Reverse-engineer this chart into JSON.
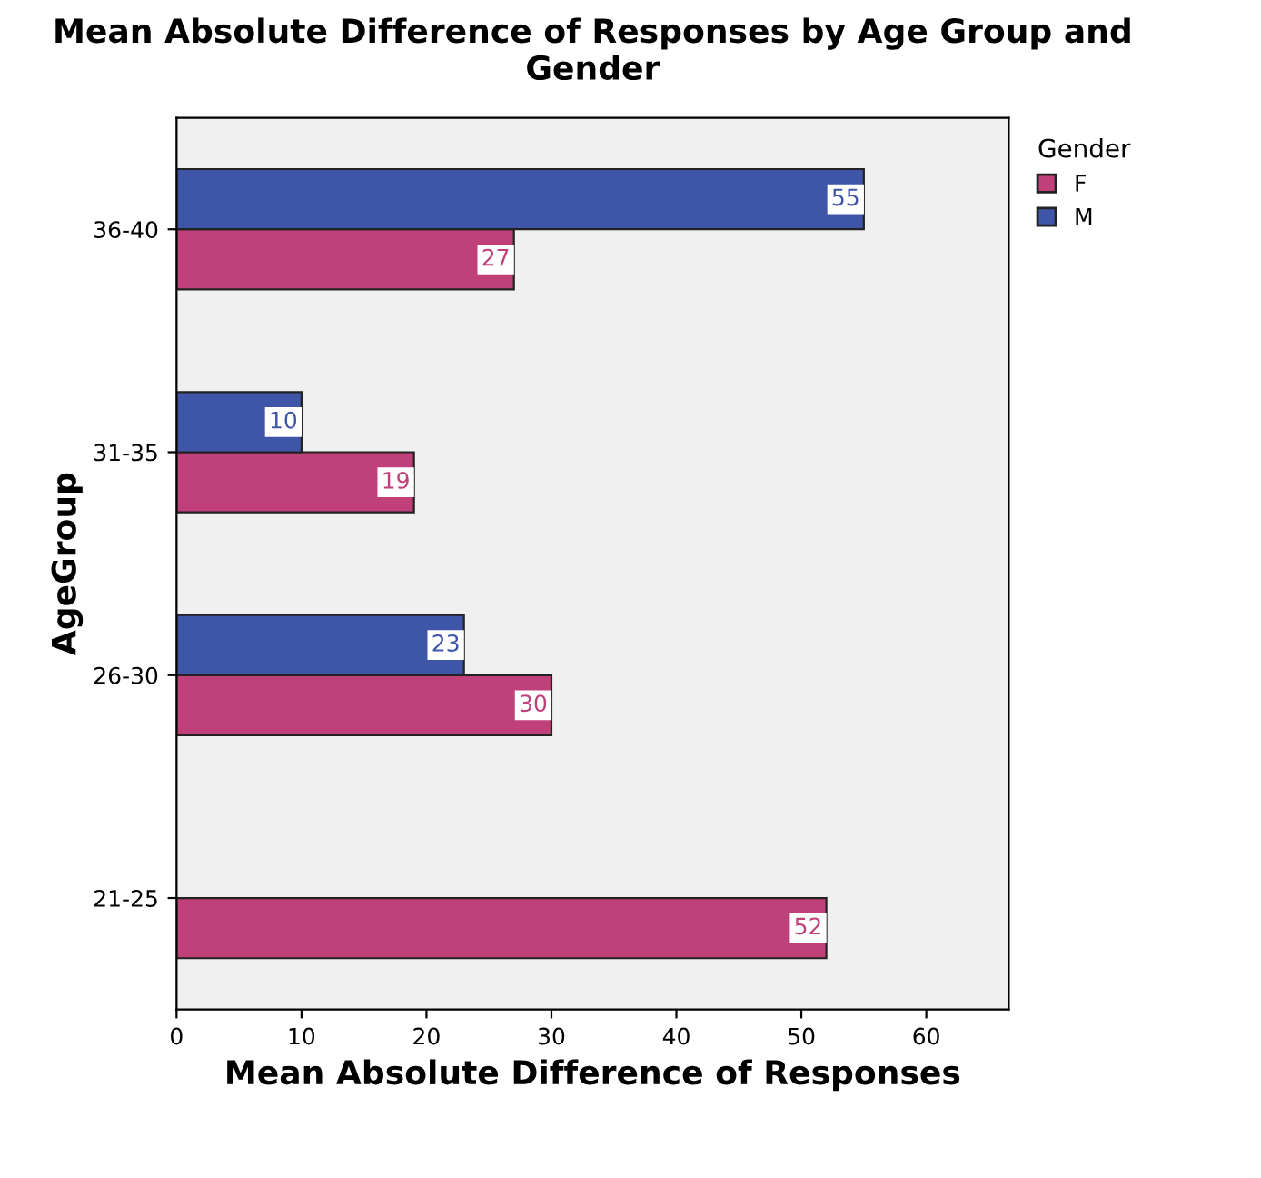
{
  "chart_data": {
    "type": "bar",
    "orientation": "horizontal",
    "title": "Mean Absolute Difference of Responses by Age Group and Gender",
    "xlabel": "Mean Absolute Difference of Responses",
    "ylabel": "AgeGroup",
    "legend_title": "Gender",
    "categories": [
      "36-40",
      "31-35",
      "26-30",
      "21-25"
    ],
    "series": [
      {
        "name": "F",
        "color": "#c0407a",
        "values": [
          27,
          19,
          30,
          52
        ]
      },
      {
        "name": "M",
        "color": "#3f56a8",
        "values": [
          55,
          10,
          23,
          null
        ]
      }
    ],
    "xlim": [
      0,
      66.6
    ],
    "xticks": [
      0,
      10,
      20,
      30,
      40,
      50,
      60
    ],
    "data_labels": true,
    "legend": "top right",
    "grid": false
  }
}
